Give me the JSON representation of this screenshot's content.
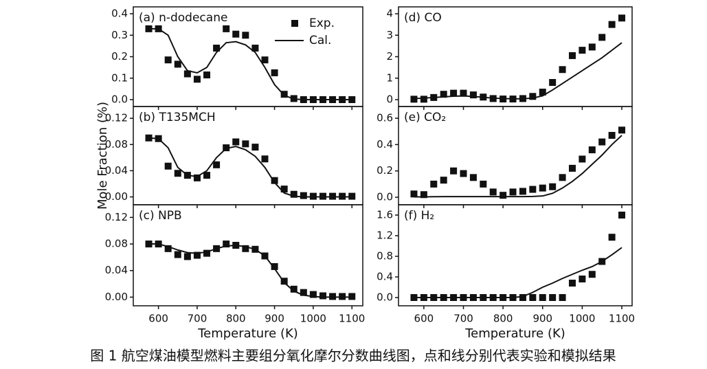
{
  "caption": "图 1 航空煤油模型燃料主要组分氧化摩尔分数曲线图，点和线分别代表实验和模拟结果",
  "chart_data": [
    {
      "type": "line",
      "title": "(a) n-dodecane",
      "xticklabels": false,
      "x": [
        575,
        600,
        625,
        650,
        675,
        700,
        725,
        750,
        775,
        800,
        825,
        850,
        875,
        900,
        925,
        950,
        975,
        1000,
        1025,
        1050,
        1075,
        1100
      ],
      "xlim": [
        535,
        1128
      ],
      "xticks": [
        600,
        700,
        800,
        900,
        1000,
        1100
      ],
      "ylim": [
        -0.032,
        0.432
      ],
      "yticks": [
        {
          "value": 0,
          "label": "0.0"
        },
        {
          "value": 0.1,
          "label": "0.1"
        },
        {
          "value": 0.2,
          "label": "0.2"
        },
        {
          "value": 0.3,
          "label": "0.3"
        },
        {
          "value": 0.4,
          "label": "0.4"
        }
      ],
      "legend": "upper right",
      "series": [
        {
          "name": "Exp.",
          "type": "scatter",
          "color": "#111111",
          "values": [
            0.33,
            0.33,
            0.185,
            0.165,
            0.12,
            0.095,
            0.115,
            0.24,
            0.33,
            0.305,
            0.3,
            0.24,
            0.185,
            0.125,
            0.025,
            0.005,
            0,
            0,
            0,
            0,
            0,
            0
          ]
        },
        {
          "name": "Cal.",
          "type": "line",
          "color": "#111111",
          "values": [
            0.33,
            0.33,
            0.3,
            0.2,
            0.135,
            0.125,
            0.15,
            0.22,
            0.265,
            0.27,
            0.255,
            0.22,
            0.15,
            0.07,
            0.02,
            0.003,
            0,
            0,
            0,
            0,
            0,
            0
          ]
        }
      ]
    },
    {
      "type": "line",
      "title": "(b) T135MCH",
      "xticklabels": false,
      "ylabel": "Mole Fraction (%)",
      "x": [
        575,
        600,
        625,
        650,
        675,
        700,
        725,
        750,
        775,
        800,
        825,
        850,
        875,
        900,
        925,
        950,
        975,
        1000,
        1025,
        1050,
        1075,
        1100
      ],
      "xlim": [
        535,
        1128
      ],
      "xticks": [
        600,
        700,
        800,
        900,
        1000,
        1100
      ],
      "ylim": [
        -0.012,
        0.138
      ],
      "yticks": [
        {
          "value": 0,
          "label": "0.00"
        },
        {
          "value": 0.04,
          "label": "0.04"
        },
        {
          "value": 0.08,
          "label": "0.08"
        },
        {
          "value": 0.12,
          "label": "0.12"
        }
      ],
      "series": [
        {
          "type": "scatter",
          "color": "#111111",
          "values": [
            0.09,
            0.089,
            0.047,
            0.036,
            0.033,
            0.029,
            0.033,
            0.049,
            0.075,
            0.084,
            0.081,
            0.076,
            0.058,
            0.025,
            0.012,
            0.004,
            0.002,
            0.001,
            0.001,
            0.001,
            0.001,
            0.001
          ]
        },
        {
          "type": "line",
          "color": "#111111",
          "values": [
            0.09,
            0.089,
            0.075,
            0.045,
            0.033,
            0.031,
            0.04,
            0.06,
            0.074,
            0.077,
            0.072,
            0.062,
            0.045,
            0.022,
            0.006,
            0.001,
            0,
            0,
            0,
            0,
            0,
            0
          ]
        }
      ]
    },
    {
      "type": "line",
      "title": "(c) NPB",
      "xticklabels": true,
      "xlabel": "Temperature (K)",
      "x": [
        575,
        600,
        625,
        650,
        675,
        700,
        725,
        750,
        775,
        800,
        825,
        850,
        875,
        900,
        925,
        950,
        975,
        1000,
        1025,
        1050,
        1075,
        1100
      ],
      "xlim": [
        535,
        1128
      ],
      "xticks": [
        600,
        700,
        800,
        900,
        1000,
        1100
      ],
      "ylim": [
        -0.013,
        0.139
      ],
      "yticks": [
        {
          "value": 0,
          "label": "0.00"
        },
        {
          "value": 0.04,
          "label": "0.04"
        },
        {
          "value": 0.08,
          "label": "0.08"
        },
        {
          "value": 0.12,
          "label": "0.12"
        }
      ],
      "series": [
        {
          "type": "scatter",
          "color": "#111111",
          "values": [
            0.08,
            0.08,
            0.073,
            0.064,
            0.061,
            0.063,
            0.066,
            0.073,
            0.08,
            0.078,
            0.073,
            0.072,
            0.062,
            0.046,
            0.024,
            0.012,
            0.007,
            0.004,
            0.002,
            0.001,
            0.001,
            0.001
          ]
        },
        {
          "type": "line",
          "color": "#111111",
          "values": [
            0.08,
            0.08,
            0.076,
            0.071,
            0.067,
            0.066,
            0.068,
            0.073,
            0.077,
            0.078,
            0.076,
            0.072,
            0.062,
            0.043,
            0.022,
            0.009,
            0.003,
            0.001,
            0,
            0,
            0,
            0
          ]
        }
      ]
    },
    {
      "type": "line",
      "title": "(d) CO",
      "xticklabels": false,
      "x": [
        575,
        600,
        625,
        650,
        675,
        700,
        725,
        750,
        775,
        800,
        825,
        850,
        875,
        900,
        925,
        950,
        975,
        1000,
        1025,
        1050,
        1075,
        1100
      ],
      "xlim": [
        536,
        1126
      ],
      "xticks": [
        600,
        700,
        800,
        900,
        1000,
        1100
      ],
      "ylim": [
        -0.32,
        4.32
      ],
      "yticks": [
        0,
        1,
        2,
        3,
        4
      ],
      "series": [
        {
          "type": "scatter",
          "color": "#111111",
          "values": [
            0.02,
            0.02,
            0.1,
            0.25,
            0.3,
            0.3,
            0.22,
            0.12,
            0.05,
            0.03,
            0.03,
            0.05,
            0.15,
            0.35,
            0.8,
            1.4,
            2.05,
            2.3,
            2.45,
            2.9,
            3.5,
            3.8
          ]
        },
        {
          "type": "line",
          "color": "#111111",
          "values": [
            0.05,
            0.07,
            0.1,
            0.13,
            0.16,
            0.17,
            0.15,
            0.11,
            0.07,
            0.05,
            0.04,
            0.04,
            0.07,
            0.18,
            0.45,
            0.75,
            1.05,
            1.35,
            1.65,
            1.95,
            2.3,
            2.65
          ]
        }
      ]
    },
    {
      "type": "line",
      "title": "(e) CO₂",
      "xticklabels": false,
      "x": [
        575,
        600,
        625,
        650,
        675,
        700,
        725,
        750,
        775,
        800,
        825,
        850,
        875,
        900,
        925,
        950,
        975,
        1000,
        1025,
        1050,
        1075,
        1100
      ],
      "xlim": [
        536,
        1126
      ],
      "xticks": [
        600,
        700,
        800,
        900,
        1000,
        1100
      ],
      "ylim": [
        -0.057,
        0.689
      ],
      "yticks": [
        {
          "value": 0,
          "label": "0.0"
        },
        {
          "value": 0.2,
          "label": "0.2"
        },
        {
          "value": 0.4,
          "label": "0.4"
        },
        {
          "value": 0.6,
          "label": "0.6"
        }
      ],
      "series": [
        {
          "type": "scatter",
          "color": "#111111",
          "values": [
            0.025,
            0.02,
            0.1,
            0.13,
            0.2,
            0.18,
            0.15,
            0.1,
            0.04,
            0.015,
            0.04,
            0.045,
            0.06,
            0.07,
            0.08,
            0.15,
            0.22,
            0.29,
            0.36,
            0.42,
            0.47,
            0.51
          ]
        },
        {
          "type": "line",
          "color": "#111111",
          "values": [
            0.003,
            0.003,
            0.004,
            0.005,
            0.005,
            0.005,
            0.005,
            0.005,
            0.005,
            0.005,
            0.005,
            0.005,
            0.006,
            0.01,
            0.03,
            0.07,
            0.12,
            0.18,
            0.25,
            0.32,
            0.4,
            0.47
          ]
        }
      ]
    },
    {
      "type": "line",
      "title": "(f) H₂",
      "xticklabels": true,
      "xlabel": "Temperature (K)",
      "x": [
        575,
        600,
        625,
        650,
        675,
        700,
        725,
        750,
        775,
        800,
        825,
        850,
        875,
        900,
        925,
        950,
        975,
        1000,
        1025,
        1050,
        1075,
        1100
      ],
      "xlim": [
        536,
        1126
      ],
      "xticks": [
        600,
        700,
        800,
        900,
        1000,
        1100
      ],
      "ylim": [
        -0.16,
        1.8
      ],
      "yticks": [
        {
          "value": 0,
          "label": "0.0"
        },
        {
          "value": 0.4,
          "label": "0.4"
        },
        {
          "value": 0.8,
          "label": "0.8"
        },
        {
          "value": 1.2,
          "label": "1.2"
        },
        {
          "value": 1.6,
          "label": "1.6"
        }
      ],
      "series": [
        {
          "type": "scatter",
          "color": "#111111",
          "values": [
            0,
            0,
            0,
            0,
            0,
            0,
            0,
            0,
            0,
            0,
            0,
            0,
            0,
            0,
            0,
            0,
            0.28,
            0.36,
            0.45,
            0.7,
            1.17,
            1.6
          ]
        },
        {
          "type": "line",
          "color": "#111111",
          "values": [
            0,
            0,
            0,
            0,
            0,
            0,
            0,
            0,
            0,
            0,
            0,
            0.02,
            0.1,
            0.2,
            0.28,
            0.37,
            0.45,
            0.53,
            0.6,
            0.7,
            0.83,
            0.97
          ]
        }
      ]
    }
  ]
}
